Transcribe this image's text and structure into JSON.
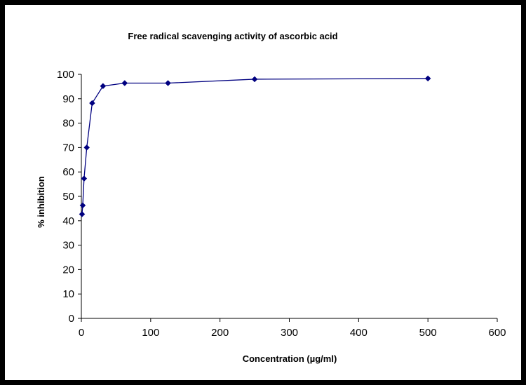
{
  "chart_data": {
    "type": "line",
    "title": "Free radical scavenging activity of ascorbic acid",
    "xlabel": "Concentration (µg/ml)",
    "ylabel": "% inhibition",
    "xlim": [
      0,
      600
    ],
    "ylim": [
      0,
      100
    ],
    "x_ticks": [
      "0",
      "100",
      "200",
      "300",
      "400",
      "500",
      "600"
    ],
    "y_ticks": [
      "0",
      "10",
      "20",
      "30",
      "40",
      "50",
      "60",
      "70",
      "80",
      "90",
      "100"
    ],
    "grid": false,
    "legend": "none",
    "series": [
      {
        "marker": "diamond",
        "color": "#000080",
        "points": [
          {
            "x": 0.98,
            "y": 42.7
          },
          {
            "x": 1.95,
            "y": 46.3
          },
          {
            "x": 3.9,
            "y": 57.3
          },
          {
            "x": 7.8,
            "y": 70.0
          },
          {
            "x": 15.6,
            "y": 88.2
          },
          {
            "x": 31.25,
            "y": 95.2
          },
          {
            "x": 62.5,
            "y": 96.4
          },
          {
            "x": 125,
            "y": 96.4
          },
          {
            "x": 250,
            "y": 98.0
          },
          {
            "x": 500,
            "y": 98.3
          }
        ]
      }
    ]
  }
}
